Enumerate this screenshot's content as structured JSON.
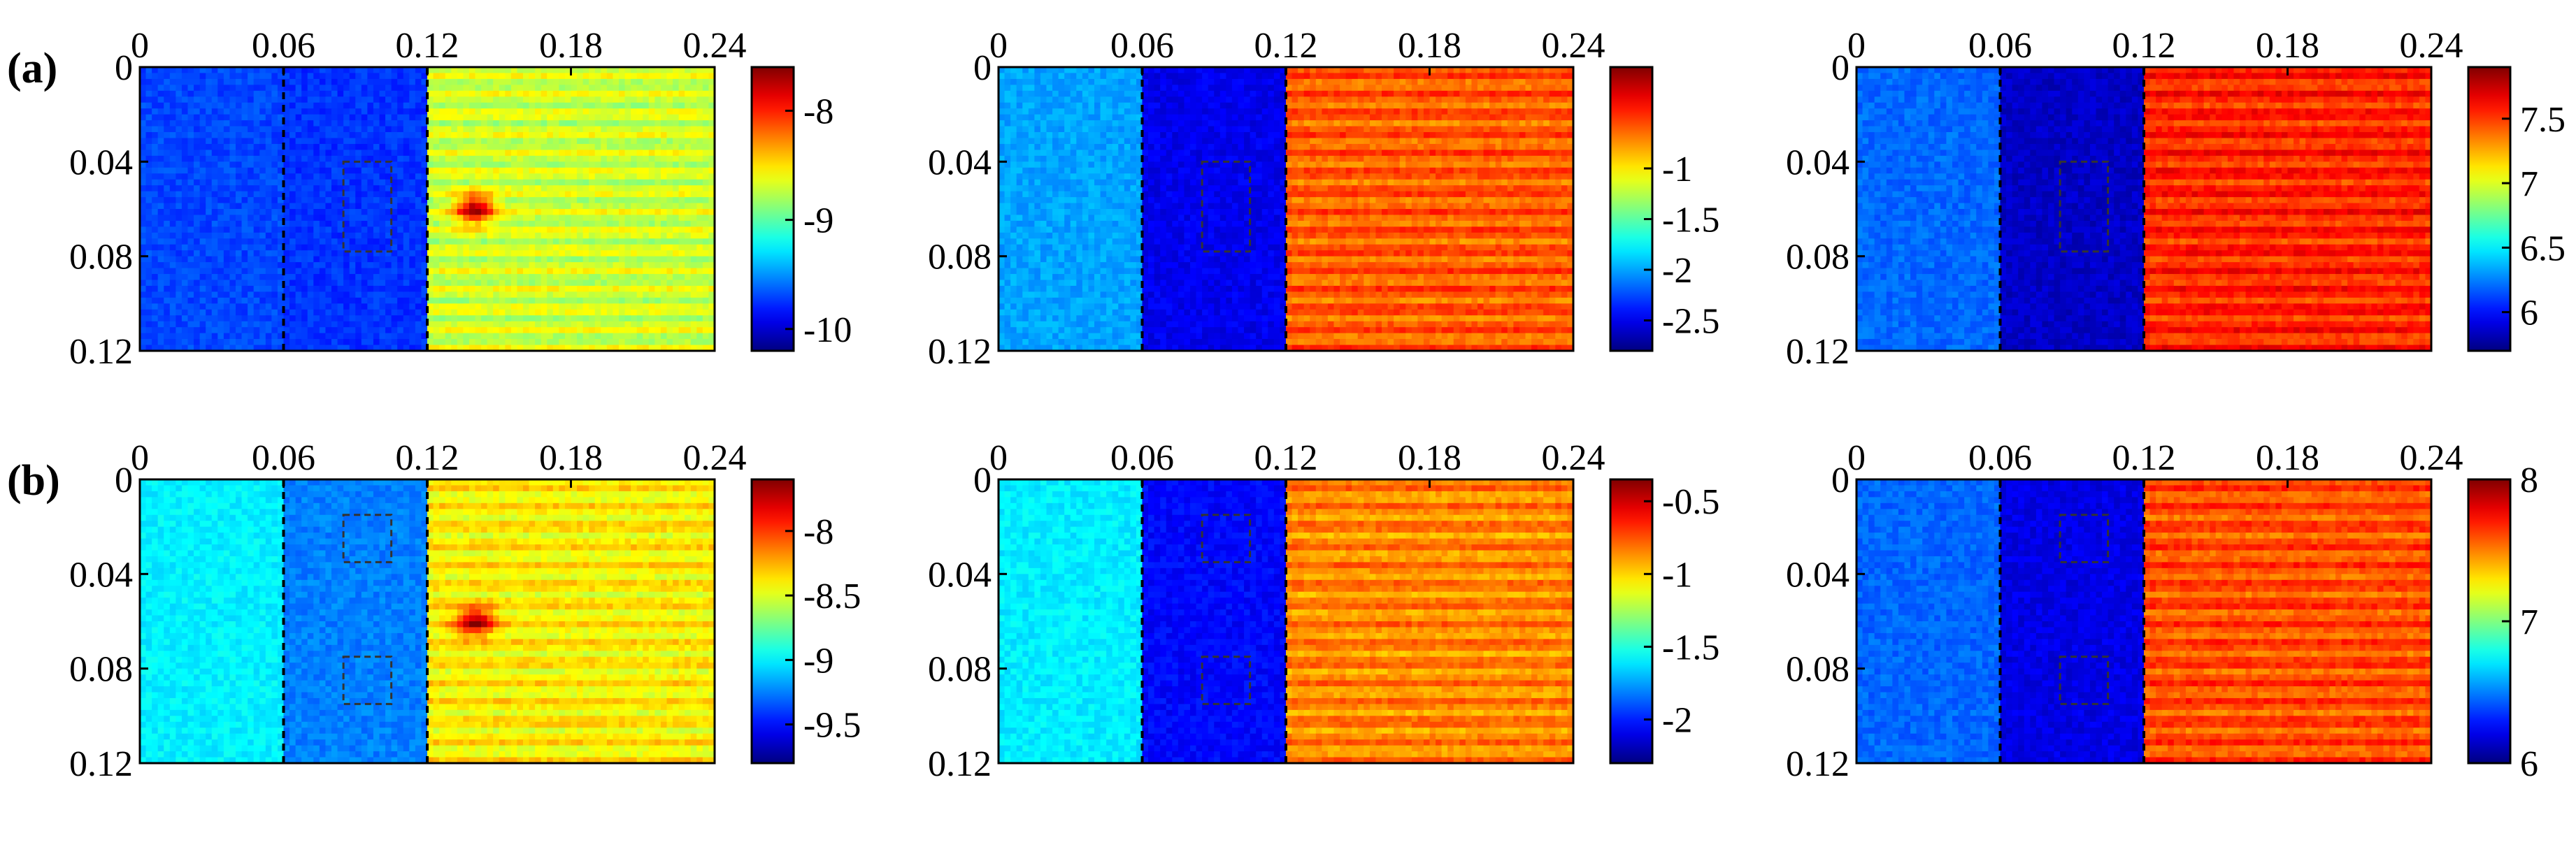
{
  "chart_data": [
    {
      "type": "heatmap",
      "row_label": "(a)",
      "x_ticks": [
        "0",
        "0.06",
        "0.12",
        "0.18",
        "0.24"
      ],
      "y_ticks": [
        "0",
        "0.04",
        "0.08",
        "0.12"
      ],
      "xlim": [
        0,
        0.24
      ],
      "ylim": [
        0.12,
        0
      ],
      "colorbar_ticks": [
        "-8",
        "-9",
        "-10"
      ],
      "colorbar_values": [
        -8,
        -9,
        -10
      ],
      "clim": [
        -10.2,
        -7.6
      ],
      "field": {
        "left_level": -9.7,
        "mid_level": -9.75,
        "right_level": -8.7,
        "hot_spot": [
          0.14,
          0.06
        ],
        "hot_spot_value": -7.7
      },
      "defect_boxes": [
        [
          0.085,
          0.04,
          0.105,
          0.078
        ]
      ]
    },
    {
      "type": "heatmap",
      "row_label": "",
      "x_ticks": [
        "0",
        "0.06",
        "0.12",
        "0.18",
        "0.24"
      ],
      "y_ticks": [
        "0",
        "0.04",
        "0.08",
        "0.12"
      ],
      "xlim": [
        0,
        0.24
      ],
      "ylim": [
        0.12,
        0
      ],
      "colorbar_ticks": [
        "-1",
        "-1.5",
        "-2",
        "-2.5"
      ],
      "colorbar_values": [
        -1,
        -1.5,
        -2,
        -2.5
      ],
      "clim": [
        -2.8,
        0
      ],
      "field": {
        "left_level": -2.0,
        "mid_level": -2.5,
        "right_level": -0.6
      },
      "defect_boxes": [
        [
          0.085,
          0.04,
          0.105,
          0.078
        ]
      ]
    },
    {
      "type": "heatmap",
      "row_label": "",
      "x_ticks": [
        "0",
        "0.06",
        "0.12",
        "0.18",
        "0.24"
      ],
      "y_ticks": [
        "0",
        "0.04",
        "0.08",
        "0.12"
      ],
      "xlim": [
        0,
        0.24
      ],
      "ylim": [
        0.12,
        0
      ],
      "colorbar_ticks": [
        "7.5",
        "7",
        "6.5",
        "6"
      ],
      "colorbar_values": [
        7.5,
        7,
        6.5,
        6
      ],
      "clim": [
        5.7,
        7.9
      ],
      "field": {
        "left_level": 6.2,
        "mid_level": 5.85,
        "right_level": 7.55
      },
      "defect_boxes": [
        [
          0.085,
          0.04,
          0.105,
          0.078
        ]
      ]
    },
    {
      "type": "heatmap",
      "row_label": "(b)",
      "x_ticks": [
        "0",
        "0.06",
        "0.12",
        "0.18",
        "0.24"
      ],
      "y_ticks": [
        "0",
        "0.04",
        "0.08",
        "0.12"
      ],
      "xlim": [
        0,
        0.24
      ],
      "ylim": [
        0.12,
        0
      ],
      "colorbar_ticks": [
        "-8",
        "-8.5",
        "-9",
        "-9.5"
      ],
      "colorbar_values": [
        -8,
        -8.5,
        -9,
        -9.5
      ],
      "clim": [
        -9.8,
        -7.6
      ],
      "field": {
        "left_level": -9.0,
        "mid_level": -9.25,
        "right_level": -8.4,
        "hot_spot": [
          0.14,
          0.06
        ],
        "hot_spot_value": -7.7
      },
      "defect_boxes": [
        [
          0.085,
          0.015,
          0.105,
          0.035
        ],
        [
          0.085,
          0.075,
          0.105,
          0.095
        ]
      ]
    },
    {
      "type": "heatmap",
      "row_label": "",
      "x_ticks": [
        "0",
        "0.06",
        "0.12",
        "0.18",
        "0.24"
      ],
      "y_ticks": [
        "0",
        "0.04",
        "0.08",
        "0.12"
      ],
      "xlim": [
        0,
        0.24
      ],
      "ylim": [
        0.12,
        0
      ],
      "colorbar_ticks": [
        "-0.5",
        "-1",
        "-1.5",
        "-2"
      ],
      "colorbar_values": [
        -0.5,
        -1,
        -1.5,
        -2
      ],
      "clim": [
        -2.3,
        -0.35
      ],
      "field": {
        "left_level": -1.6,
        "mid_level": -2.05,
        "right_level": -0.85
      },
      "defect_boxes": [
        [
          0.085,
          0.015,
          0.105,
          0.035
        ],
        [
          0.085,
          0.075,
          0.105,
          0.095
        ]
      ]
    },
    {
      "type": "heatmap",
      "row_label": "",
      "x_ticks": [
        "0",
        "0.06",
        "0.12",
        "0.18",
        "0.24"
      ],
      "y_ticks": [
        "0",
        "0.04",
        "0.08",
        "0.12"
      ],
      "xlim": [
        0,
        0.24
      ],
      "ylim": [
        0.12,
        0
      ],
      "colorbar_ticks": [
        "8",
        "7",
        "6"
      ],
      "colorbar_values": [
        8,
        7,
        6
      ],
      "clim": [
        6,
        8
      ],
      "field": {
        "left_level": 6.45,
        "mid_level": 6.2,
        "right_level": 7.6
      },
      "defect_boxes": [
        [
          0.085,
          0.015,
          0.105,
          0.035
        ],
        [
          0.085,
          0.075,
          0.105,
          0.095
        ]
      ]
    }
  ]
}
